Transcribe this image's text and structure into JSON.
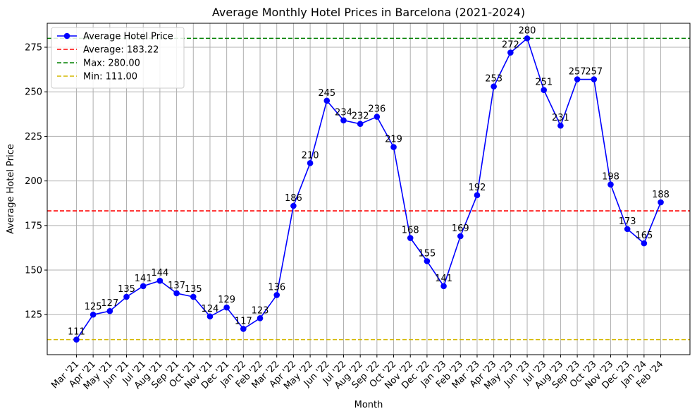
{
  "chart_data": {
    "type": "line",
    "title": "Average Monthly Hotel Prices in Barcelona (2021-2024)",
    "xlabel": "Month",
    "ylabel": "Average Hotel Price",
    "categories": [
      "Mar '21",
      "Apr '21",
      "May '21",
      "Jun '21",
      "Jul '21",
      "Aug '21",
      "Sep '21",
      "Oct '21",
      "Nov '21",
      "Dec '21",
      "Jan '22",
      "Feb '22",
      "Mar '22",
      "Apr '22",
      "May '22",
      "Jun '22",
      "Jul '22",
      "Aug '22",
      "Sep '22",
      "Oct '22",
      "Nov '22",
      "Dec '22",
      "Jan '23",
      "Feb '23",
      "Mar '23",
      "Apr '23",
      "May '23",
      "Jun '23",
      "Jul '23",
      "Aug '23",
      "Sep '23",
      "Oct '23",
      "Nov '23",
      "Dec '23",
      "Jan '24",
      "Feb '24"
    ],
    "series": [
      {
        "name": "Average Hotel Price",
        "color": "#0000ff",
        "values": [
          111,
          125,
          127,
          135,
          141,
          144,
          137,
          135,
          124,
          129,
          117,
          123,
          136,
          186,
          210,
          245,
          234,
          232,
          236,
          219,
          168,
          155,
          141,
          169,
          192,
          253,
          272,
          280,
          251,
          231,
          257,
          257,
          198,
          173,
          165,
          188
        ]
      }
    ],
    "reference_lines": [
      {
        "label": "Average: 183.22",
        "value": 183.22,
        "color": "#ff0000",
        "style": "dashed"
      },
      {
        "label": "Max: 280.00",
        "value": 280.0,
        "color": "#008000",
        "style": "dashed"
      },
      {
        "label": "Min: 111.00",
        "value": 111.0,
        "color": "#d4b800",
        "style": "dashed"
      }
    ],
    "yticks": [
      125,
      150,
      175,
      200,
      225,
      250,
      275
    ],
    "ylim": [
      102.55,
      288.45
    ],
    "grid": true,
    "legend_position": "top-left"
  }
}
